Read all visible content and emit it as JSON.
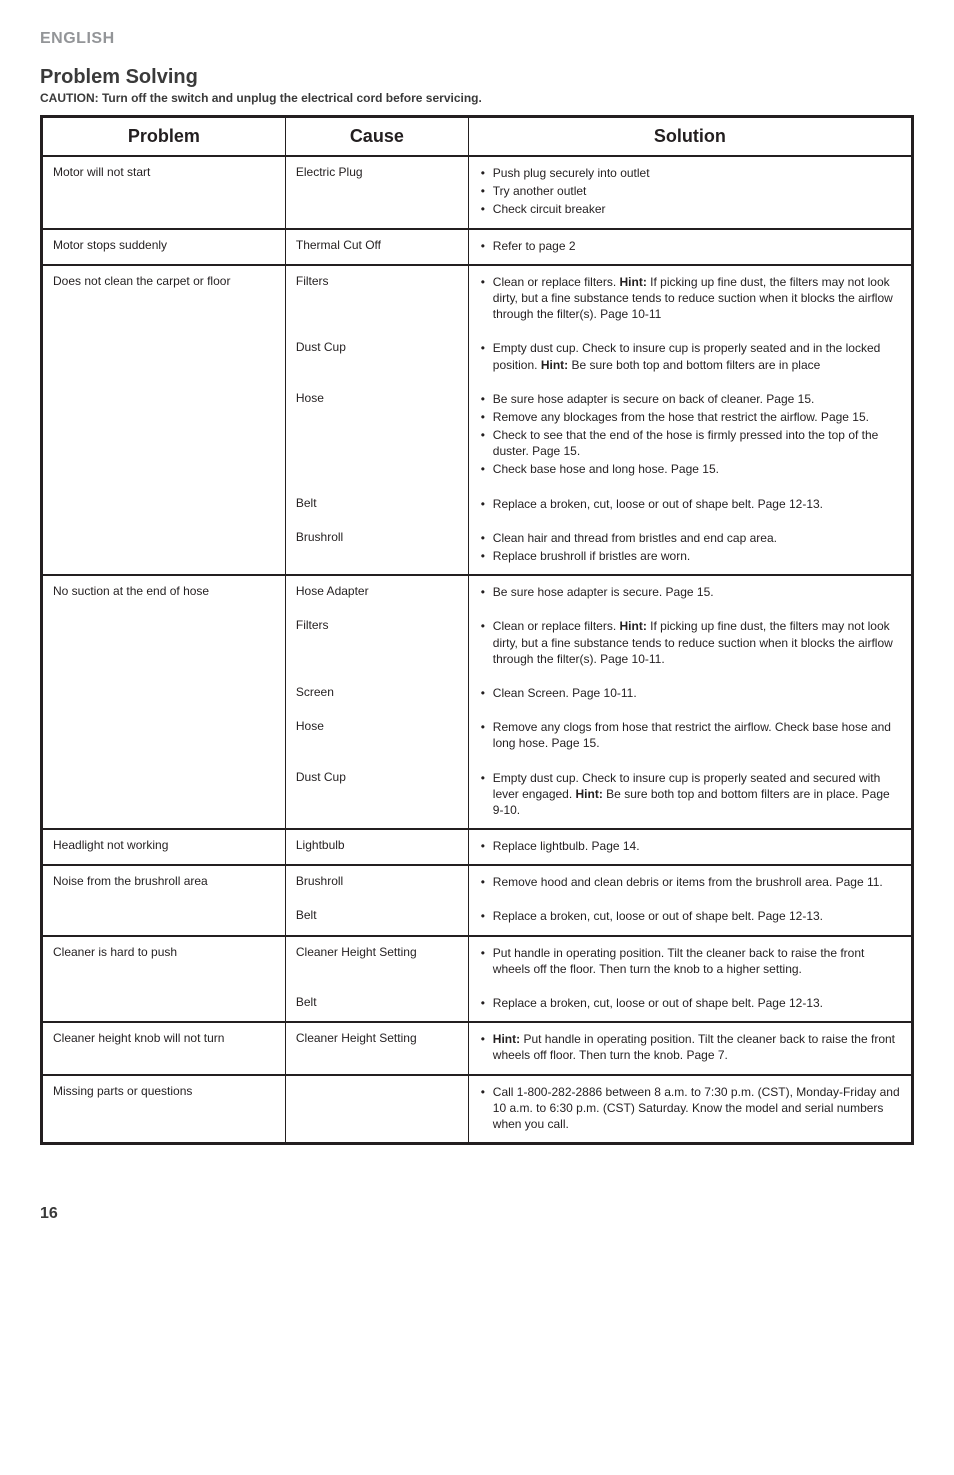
{
  "lang_label": "ENGLISH",
  "title": "Problem Solving",
  "caution": "CAUTION: Turn off the switch and unplug the electrical cord before servicing.",
  "headers": {
    "problem": "Problem",
    "cause": "Cause",
    "solution": "Solution"
  },
  "groups": [
    {
      "problem": "Motor will not start",
      "rows": [
        {
          "cause": "Electric Plug",
          "solutions": [
            "Push plug securely into outlet",
            "Try another outlet",
            "Check circuit breaker"
          ]
        }
      ]
    },
    {
      "problem": "Motor stops suddenly",
      "rows": [
        {
          "cause": "Thermal Cut Off",
          "solutions": [
            "Refer to page 2"
          ]
        }
      ]
    },
    {
      "problem": "Does not clean the carpet or floor",
      "rows": [
        {
          "cause": "Filters",
          "solutions": [
            "Clean or replace filters. <b>Hint:</b> If picking up fine dust, the filters may not look dirty, but a fine substance tends to reduce suction when it blocks the airflow through the filter(s). Page 10-11"
          ]
        },
        {
          "cause": "Dust Cup",
          "solutions": [
            "Empty dust cup. Check to insure cup is properly seated and in the locked position. <b>Hint:</b> Be sure both top and bottom filters are in place"
          ]
        },
        {
          "cause": "Hose",
          "solutions": [
            "Be sure hose adapter is secure on back of cleaner. Page 15.",
            "Remove any blockages from the hose that restrict the airflow. Page 15.",
            "Check to see that the end of the hose is firmly pressed into the top of the duster. Page 15.",
            "Check base hose and long hose. Page 15."
          ]
        },
        {
          "cause": "Belt",
          "solutions": [
            "Replace a broken, cut, loose or out of shape belt. Page 12-13."
          ]
        },
        {
          "cause": "Brushroll",
          "solutions": [
            "Clean hair and thread from bristles and end cap area.",
            "Replace brushroll if bristles are worn."
          ]
        }
      ]
    },
    {
      "problem": "No suction at the end of hose",
      "rows": [
        {
          "cause": "Hose Adapter",
          "solutions": [
            "Be sure hose adapter is secure. Page 15."
          ]
        },
        {
          "cause": "Filters",
          "solutions": [
            "Clean or replace filters. <b>Hint:</b> If picking up fine dust, the filters may not look dirty, but a fine substance tends to reduce suction when it blocks the airflow through the filter(s). Page 10-11."
          ]
        },
        {
          "cause": "Screen",
          "solutions": [
            "Clean Screen. Page 10-11."
          ]
        },
        {
          "cause": "Hose",
          "solutions": [
            "Remove any clogs from hose that restrict the airflow. Check base hose and long hose. Page 15."
          ]
        },
        {
          "cause": "Dust Cup",
          "solutions": [
            "Empty dust cup. Check to insure cup is properly seated and secured with lever engaged. <b>Hint:</b> Be sure both top and bottom filters are in place. Page 9-10."
          ]
        }
      ]
    },
    {
      "problem": "Headlight not working",
      "rows": [
        {
          "cause": "Lightbulb",
          "solutions": [
            "Replace lightbulb. Page 14."
          ]
        }
      ]
    },
    {
      "problem": "Noise from the brushroll area",
      "rows": [
        {
          "cause": "Brushroll",
          "solutions": [
            "Remove hood and clean debris or items from the brushroll area. Page 11."
          ]
        },
        {
          "cause": "Belt",
          "solutions": [
            "Replace a broken, cut, loose or out of shape belt. Page 12-13."
          ]
        }
      ]
    },
    {
      "problem": "Cleaner is hard to push",
      "rows": [
        {
          "cause": "Cleaner Height Setting",
          "solutions": [
            "Put handle in operating position. Tilt the cleaner back to raise the front wheels off the floor. Then turn the knob to a higher setting."
          ]
        },
        {
          "cause": "Belt",
          "solutions": [
            "Replace a broken, cut, loose or out of shape belt. Page 12-13."
          ]
        }
      ]
    },
    {
      "problem": "Cleaner height knob will not turn",
      "rows": [
        {
          "cause": "Cleaner Height Setting",
          "solutions": [
            "<b>Hint:</b> Put handle in operating position. Tilt the cleaner back to raise the front wheels off floor. Then turn the knob. Page 7."
          ]
        }
      ]
    },
    {
      "problem": "Missing parts or questions",
      "rows": [
        {
          "cause": "",
          "solutions": [
            "Call 1-800-282-2886 between 8 a.m. to 7:30 p.m. (CST), Monday-Friday and 10 a.m. to 6:30 p.m. (CST) Saturday. Know the model and serial numbers when you call."
          ]
        }
      ]
    }
  ],
  "page_number": "16"
}
